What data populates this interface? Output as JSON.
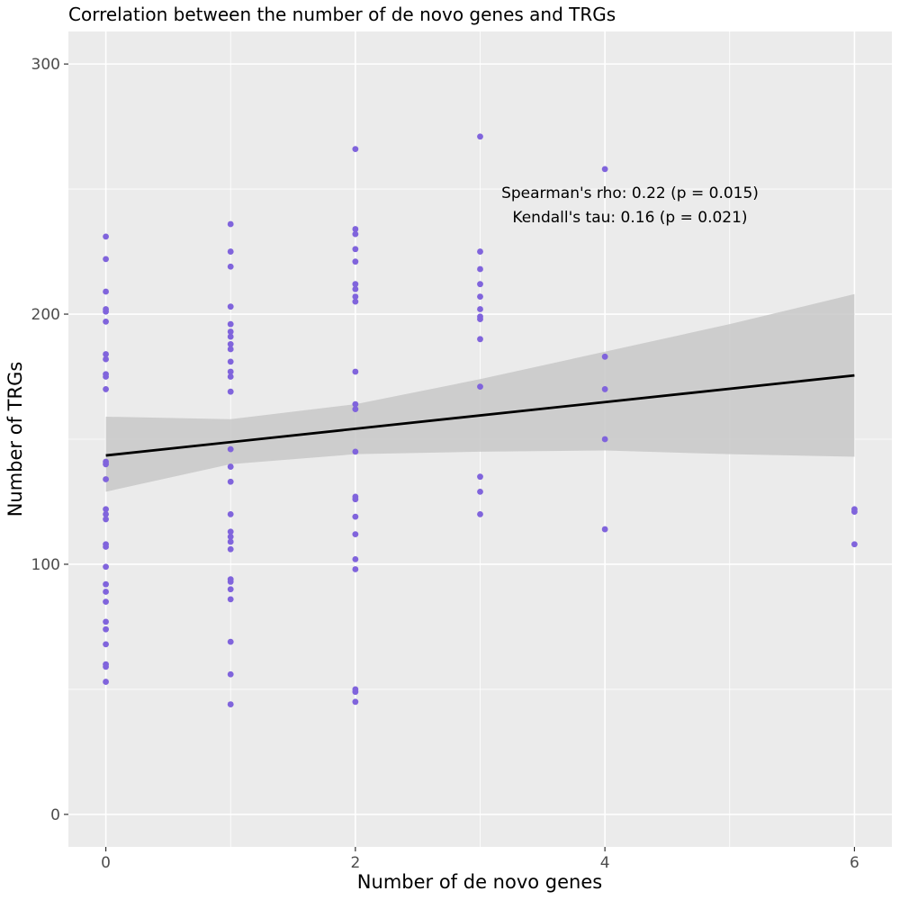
{
  "chart_data": {
    "type": "scatter",
    "title": "Correlation between the number of de novo genes and TRGs",
    "xlabel": "Number of de novo genes",
    "ylabel": "Number of TRGs",
    "xlim": [
      -0.3,
      6.3
    ],
    "ylim": [
      -13,
      313
    ],
    "x_ticks": [
      0,
      2,
      4,
      6
    ],
    "x_tick_labels": [
      "0",
      "2",
      "4",
      "6"
    ],
    "y_ticks": [
      0,
      100,
      200,
      300
    ],
    "y_tick_labels": [
      "0",
      "100",
      "200",
      "300"
    ],
    "x_minor_grid": [
      1,
      3,
      5
    ],
    "y_minor_grid": [
      50,
      150,
      250
    ],
    "grid": true,
    "legend": "none",
    "colors": {
      "panel_background": "#ebebeb",
      "grid": "#ffffff",
      "points": "#8064dc",
      "fit_line": "#000000",
      "confidence_band": "#c8c8c8"
    },
    "points": [
      {
        "x": 0,
        "y": 231
      },
      {
        "x": 0,
        "y": 222
      },
      {
        "x": 0,
        "y": 209
      },
      {
        "x": 0,
        "y": 202
      },
      {
        "x": 0,
        "y": 201
      },
      {
        "x": 0,
        "y": 197
      },
      {
        "x": 0,
        "y": 184
      },
      {
        "x": 0,
        "y": 182
      },
      {
        "x": 0,
        "y": 176
      },
      {
        "x": 0,
        "y": 175
      },
      {
        "x": 0,
        "y": 170
      },
      {
        "x": 0,
        "y": 141
      },
      {
        "x": 0,
        "y": 140
      },
      {
        "x": 0,
        "y": 134
      },
      {
        "x": 0,
        "y": 122
      },
      {
        "x": 0,
        "y": 120
      },
      {
        "x": 0,
        "y": 118
      },
      {
        "x": 0,
        "y": 108
      },
      {
        "x": 0,
        "y": 107
      },
      {
        "x": 0,
        "y": 99
      },
      {
        "x": 0,
        "y": 92
      },
      {
        "x": 0,
        "y": 89
      },
      {
        "x": 0,
        "y": 85
      },
      {
        "x": 0,
        "y": 77
      },
      {
        "x": 0,
        "y": 74
      },
      {
        "x": 0,
        "y": 68
      },
      {
        "x": 0,
        "y": 60
      },
      {
        "x": 0,
        "y": 59
      },
      {
        "x": 0,
        "y": 53
      },
      {
        "x": 1,
        "y": 236
      },
      {
        "x": 1,
        "y": 225
      },
      {
        "x": 1,
        "y": 219
      },
      {
        "x": 1,
        "y": 203
      },
      {
        "x": 1,
        "y": 196
      },
      {
        "x": 1,
        "y": 193
      },
      {
        "x": 1,
        "y": 191
      },
      {
        "x": 1,
        "y": 188
      },
      {
        "x": 1,
        "y": 186
      },
      {
        "x": 1,
        "y": 181
      },
      {
        "x": 1,
        "y": 177
      },
      {
        "x": 1,
        "y": 175
      },
      {
        "x": 1,
        "y": 169
      },
      {
        "x": 1,
        "y": 146
      },
      {
        "x": 1,
        "y": 139
      },
      {
        "x": 1,
        "y": 133
      },
      {
        "x": 1,
        "y": 120
      },
      {
        "x": 1,
        "y": 113
      },
      {
        "x": 1,
        "y": 111
      },
      {
        "x": 1,
        "y": 109
      },
      {
        "x": 1,
        "y": 106
      },
      {
        "x": 1,
        "y": 94
      },
      {
        "x": 1,
        "y": 93
      },
      {
        "x": 1,
        "y": 90
      },
      {
        "x": 1,
        "y": 86
      },
      {
        "x": 1,
        "y": 69
      },
      {
        "x": 1,
        "y": 56
      },
      {
        "x": 1,
        "y": 44
      },
      {
        "x": 2,
        "y": 266
      },
      {
        "x": 2,
        "y": 234
      },
      {
        "x": 2,
        "y": 232
      },
      {
        "x": 2,
        "y": 226
      },
      {
        "x": 2,
        "y": 221
      },
      {
        "x": 2,
        "y": 212
      },
      {
        "x": 2,
        "y": 210
      },
      {
        "x": 2,
        "y": 207
      },
      {
        "x": 2,
        "y": 205
      },
      {
        "x": 2,
        "y": 177
      },
      {
        "x": 2,
        "y": 164
      },
      {
        "x": 2,
        "y": 162
      },
      {
        "x": 2,
        "y": 145
      },
      {
        "x": 2,
        "y": 127
      },
      {
        "x": 2,
        "y": 126
      },
      {
        "x": 2,
        "y": 119
      },
      {
        "x": 2,
        "y": 112
      },
      {
        "x": 2,
        "y": 102
      },
      {
        "x": 2,
        "y": 98
      },
      {
        "x": 2,
        "y": 50
      },
      {
        "x": 2,
        "y": 49
      },
      {
        "x": 2,
        "y": 45
      },
      {
        "x": 3,
        "y": 271
      },
      {
        "x": 3,
        "y": 225
      },
      {
        "x": 3,
        "y": 218
      },
      {
        "x": 3,
        "y": 212
      },
      {
        "x": 3,
        "y": 207
      },
      {
        "x": 3,
        "y": 202
      },
      {
        "x": 3,
        "y": 199
      },
      {
        "x": 3,
        "y": 198
      },
      {
        "x": 3,
        "y": 190
      },
      {
        "x": 3,
        "y": 171
      },
      {
        "x": 3,
        "y": 135
      },
      {
        "x": 3,
        "y": 129
      },
      {
        "x": 3,
        "y": 120
      },
      {
        "x": 4,
        "y": 258
      },
      {
        "x": 4,
        "y": 183
      },
      {
        "x": 4,
        "y": 170
      },
      {
        "x": 4,
        "y": 150
      },
      {
        "x": 4,
        "y": 114
      },
      {
        "x": 6,
        "y": 122
      },
      {
        "x": 6,
        "y": 121
      },
      {
        "x": 6,
        "y": 108
      }
    ],
    "fit_line": {
      "x": [
        0,
        6
      ],
      "y": [
        143.5,
        175.5
      ]
    },
    "confidence_band": [
      {
        "x": 0,
        "lower": 129,
        "upper": 159
      },
      {
        "x": 1,
        "lower": 140,
        "upper": 158
      },
      {
        "x": 2,
        "lower": 144,
        "upper": 164
      },
      {
        "x": 3,
        "lower": 145,
        "upper": 174
      },
      {
        "x": 4,
        "lower": 145.5,
        "upper": 185
      },
      {
        "x": 5,
        "lower": 144,
        "upper": 196
      },
      {
        "x": 6,
        "lower": 143,
        "upper": 208
      }
    ],
    "annotations": [
      "Spearman's rho: 0.22 (p = 0.015)",
      "Kendall's tau: 0.16 (p = 0.021)"
    ]
  }
}
